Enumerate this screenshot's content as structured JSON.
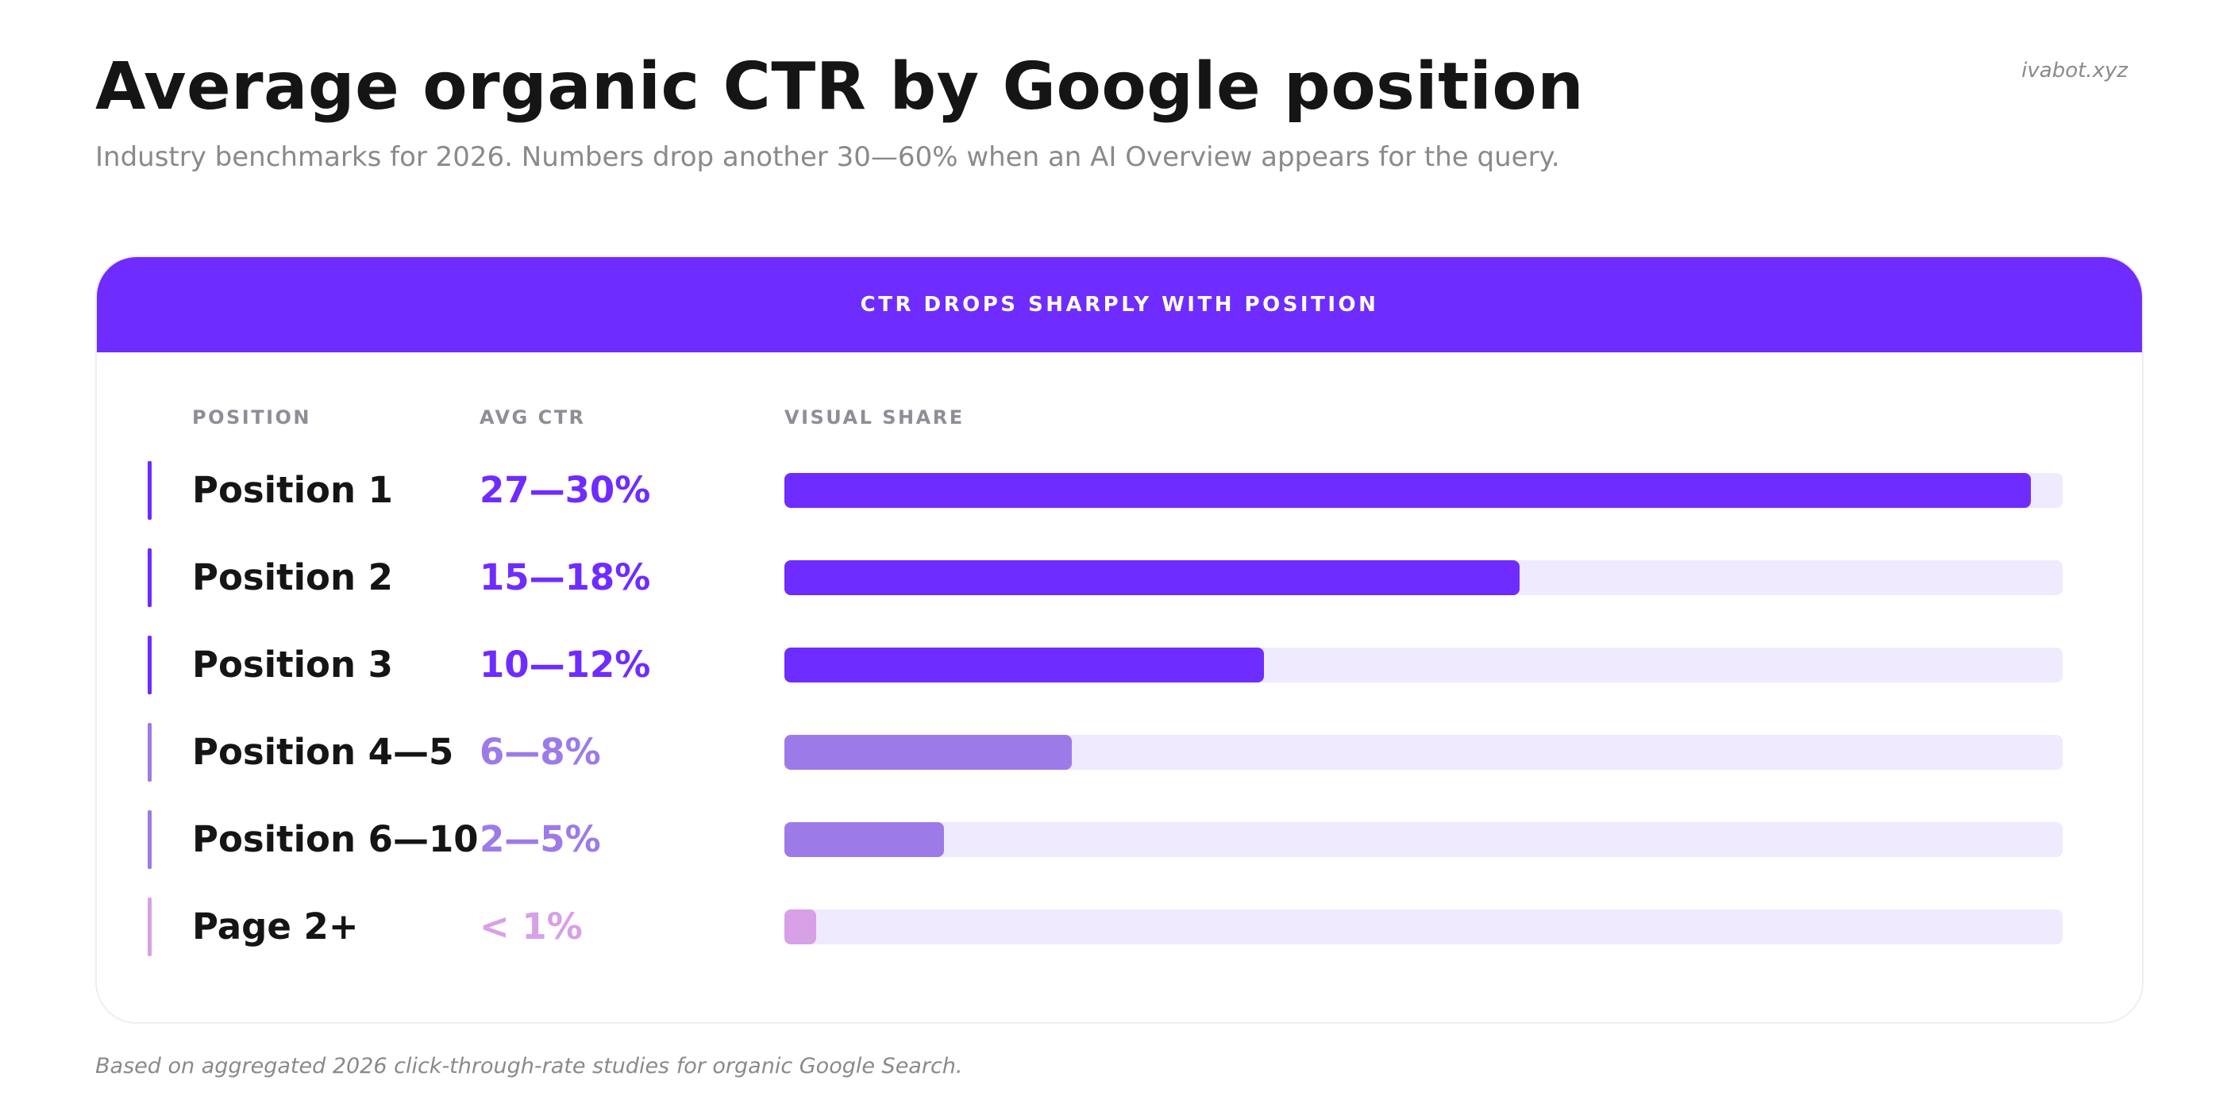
{
  "header": {
    "title": "Average organic CTR by Google position",
    "subtitle": "Industry benchmarks for 2026. Numbers drop another 30—60% when an AI Overview appears for the query.",
    "brand": "ivabot.xyz"
  },
  "card": {
    "banner": "CTR DROPS SHARPLY WITH POSITION",
    "columns": {
      "position": "POSITION",
      "ctr": "AVG CTR",
      "share": "VISUAL SHARE"
    }
  },
  "colors": {
    "strong": "#6f2cff",
    "medium": "#9c7be8",
    "weak": "#d8a0e6",
    "track": "#efeafd"
  },
  "chart_data": {
    "type": "bar",
    "orientation": "horizontal",
    "title": "CTR DROPS SHARPLY WITH POSITION",
    "xlim": [
      0,
      100
    ],
    "rows": [
      {
        "position": "Position 1",
        "ctr": "27—30%",
        "share": 97.5,
        "tier": "strong"
      },
      {
        "position": "Position 2",
        "ctr": "15—18%",
        "share": 57.5,
        "tier": "strong"
      },
      {
        "position": "Position 3",
        "ctr": "10—12%",
        "share": 37.5,
        "tier": "strong"
      },
      {
        "position": "Position 4—5",
        "ctr": "6—8%",
        "share": 22.5,
        "tier": "medium"
      },
      {
        "position": "Position 6—10",
        "ctr": "2—5%",
        "share": 12.5,
        "tier": "medium"
      },
      {
        "position": "Page 2+",
        "ctr": "< 1%",
        "share": 2.5,
        "tier": "weak"
      }
    ]
  },
  "footnote": "Based on aggregated 2026 click-through-rate studies for organic Google Search."
}
